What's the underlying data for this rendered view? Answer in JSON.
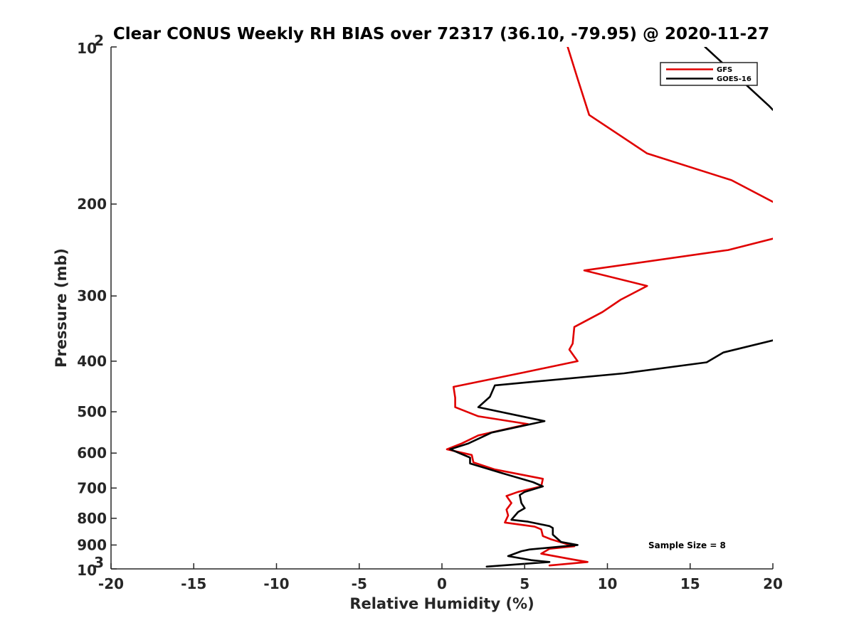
{
  "chart_data": {
    "type": "line",
    "title": "Clear CONUS Weekly RH BIAS over 72317 (36.10, -79.95) @ 2020-11-27",
    "xlabel": "Relative Humidity (%)",
    "ylabel": "Pressure (mb)",
    "xlim": [
      -20,
      20
    ],
    "ylim": [
      100,
      1000
    ],
    "yscale": "log",
    "y_reversed": true,
    "grid": false,
    "legend_position": "top-right",
    "x_ticks": [
      "-20",
      "-15",
      "-10",
      "-5",
      "0",
      "5",
      "10",
      "15",
      "20"
    ],
    "y_ticks": [
      {
        "base": "10",
        "exp": "2"
      },
      {
        "text": "200"
      },
      {
        "text": "300"
      },
      {
        "text": "400"
      },
      {
        "text": "500"
      },
      {
        "text": "600"
      },
      {
        "text": "700"
      },
      {
        "text": "800"
      },
      {
        "text": "900"
      },
      {
        "base": "10",
        "exp": "3"
      }
    ],
    "annotation": "Sample Size = 8",
    "series": [
      {
        "name": "GFS",
        "color": "#e00000",
        "points": [
          [
            7.6,
            100
          ],
          [
            8.2,
            115
          ],
          [
            8.9,
            135
          ],
          [
            12.4,
            160
          ],
          [
            17.5,
            180
          ],
          [
            20.0,
            198
          ],
          [
            null,
            null
          ],
          [
            20.0,
            233
          ],
          [
            17.3,
            245
          ],
          [
            8.6,
            268
          ],
          [
            12.4,
            287
          ],
          [
            10.8,
            305
          ],
          [
            9.7,
            322
          ],
          [
            8.0,
            344
          ],
          [
            7.9,
            370
          ],
          [
            7.7,
            380
          ],
          [
            8.2,
            400
          ],
          [
            5.0,
            420
          ],
          [
            0.7,
            448
          ],
          [
            0.8,
            470
          ],
          [
            0.8,
            490
          ],
          [
            2.2,
            510
          ],
          [
            5.2,
            528
          ],
          [
            2.2,
            555
          ],
          [
            1.2,
            575
          ],
          [
            0.3,
            590
          ],
          [
            1.8,
            605
          ],
          [
            1.9,
            625
          ],
          [
            3.2,
            645
          ],
          [
            6.1,
            672
          ],
          [
            6.0,
            695
          ],
          [
            4.6,
            712
          ],
          [
            3.9,
            725
          ],
          [
            4.2,
            748
          ],
          [
            3.9,
            770
          ],
          [
            4.0,
            790
          ],
          [
            3.8,
            815
          ],
          [
            5.6,
            830
          ],
          [
            6.0,
            840
          ],
          [
            6.1,
            865
          ],
          [
            6.6,
            878
          ],
          [
            8.0,
            905
          ],
          [
            6.5,
            915
          ],
          [
            6.0,
            935
          ],
          [
            7.8,
            958
          ],
          [
            8.8,
            970
          ],
          [
            6.5,
            985
          ]
        ]
      },
      {
        "name": "GOES-16",
        "color": "#000000",
        "points": [
          [
            15.9,
            100
          ],
          [
            19.8,
            130
          ],
          [
            20.0,
            132
          ],
          [
            null,
            null
          ],
          [
            20.0,
            365
          ],
          [
            17.0,
            385
          ],
          [
            16.0,
            402
          ],
          [
            11.0,
            422
          ],
          [
            3.2,
            445
          ],
          [
            2.9,
            468
          ],
          [
            2.2,
            490
          ],
          [
            6.2,
            521
          ],
          [
            3.0,
            548
          ],
          [
            1.6,
            575
          ],
          [
            0.5,
            590
          ],
          [
            1.7,
            612
          ],
          [
            1.7,
            628
          ],
          [
            3.6,
            655
          ],
          [
            5.5,
            682
          ],
          [
            6.1,
            695
          ],
          [
            5.0,
            712
          ],
          [
            4.7,
            722
          ],
          [
            4.8,
            748
          ],
          [
            5.0,
            765
          ],
          [
            4.6,
            778
          ],
          [
            4.2,
            805
          ],
          [
            5.2,
            812
          ],
          [
            6.5,
            828
          ],
          [
            6.7,
            835
          ],
          [
            6.7,
            860
          ],
          [
            7.2,
            888
          ],
          [
            8.2,
            900
          ],
          [
            5.3,
            918
          ],
          [
            4.8,
            925
          ],
          [
            4.0,
            945
          ],
          [
            5.4,
            962
          ],
          [
            6.5,
            970
          ],
          [
            2.7,
            990
          ]
        ]
      }
    ]
  }
}
